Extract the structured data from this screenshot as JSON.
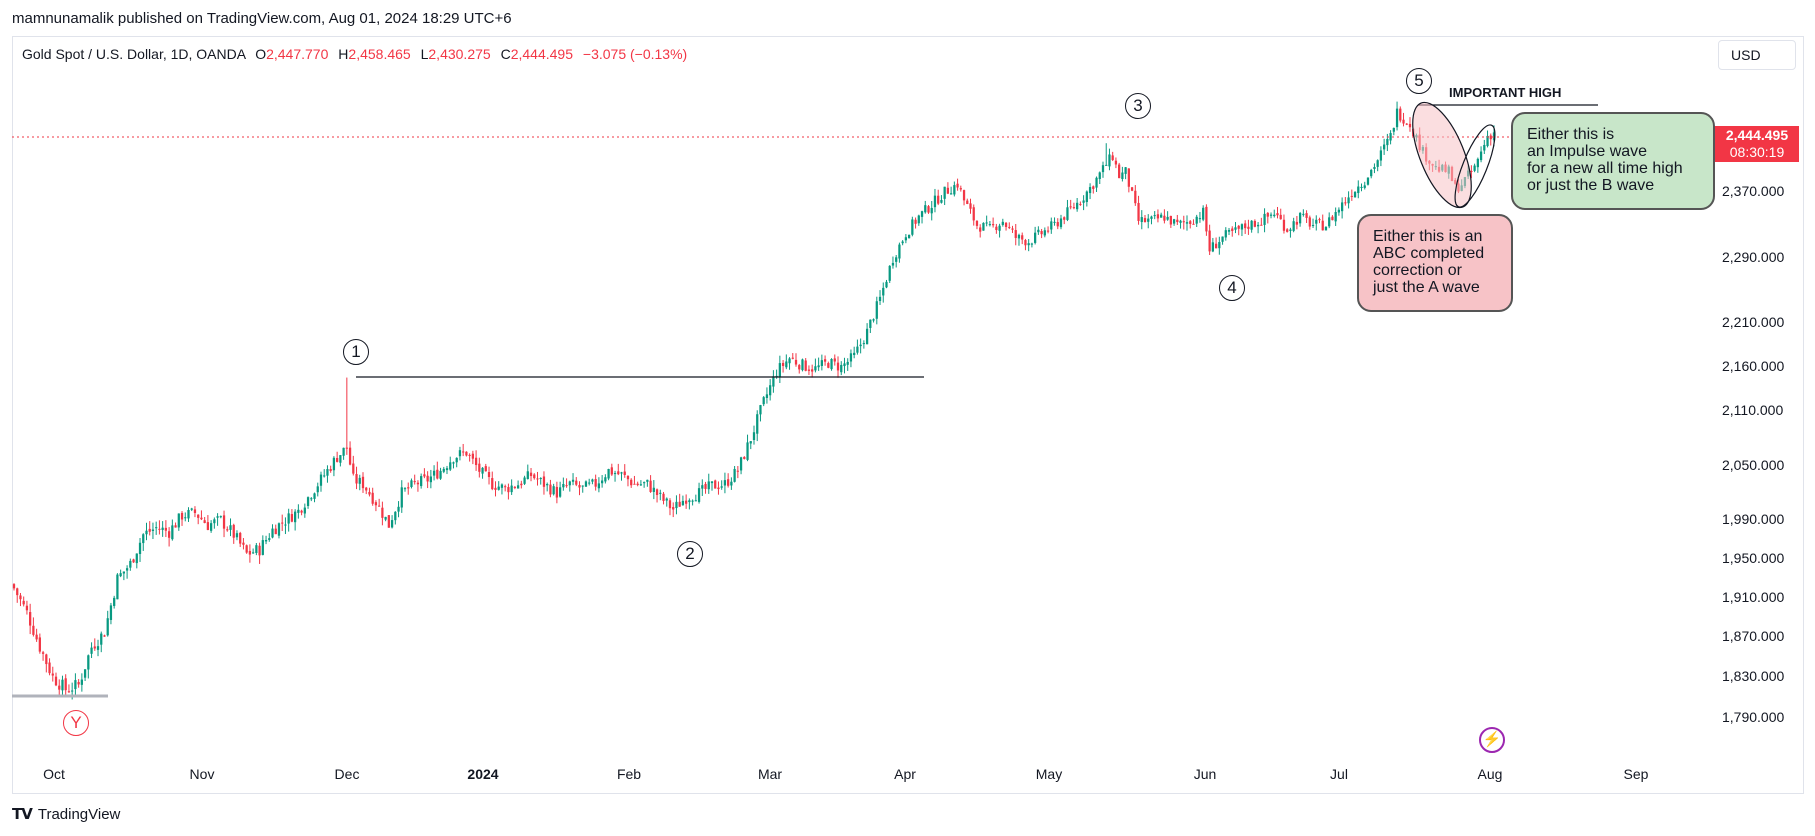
{
  "header": {
    "published": "mamnunamalik published on TradingView.com, Aug 01, 2024 18:29 UTC+6"
  },
  "legend": {
    "symbol": "Gold Spot / U.S. Dollar, 1D, OANDA",
    "o_label": "O",
    "o_value": "2,447.770",
    "h_label": "H",
    "h_value": "2,458.465",
    "l_label": "L",
    "l_value": "2,430.275",
    "c_label": "C",
    "c_value": "2,444.495",
    "change": "−3.075 (−0.13%)"
  },
  "currency_button": "USD",
  "price_badge": {
    "price": "2,444.495",
    "countdown": "08:30:19"
  },
  "footer": {
    "logo_text": "TradingView"
  },
  "annotations": {
    "important_high": "IMPORTANT HIGH",
    "green_note": [
      "Either this is",
      "an Impulse wave",
      "for a new all time high",
      "or just the B wave"
    ],
    "red_note": [
      "Either this is an",
      "ABC completed",
      "correction or",
      "just the A wave"
    ],
    "wave_labels": [
      {
        "name": "wave-1",
        "text": "1"
      },
      {
        "name": "wave-2",
        "text": "2"
      },
      {
        "name": "wave-3",
        "text": "3"
      },
      {
        "name": "wave-4",
        "text": "4"
      },
      {
        "name": "wave-5",
        "text": "5"
      },
      {
        "name": "wave-y",
        "text": "Y"
      }
    ]
  },
  "colors": {
    "up": "#089981",
    "down": "#f23645",
    "level_line": "#131722",
    "ellipse_fill": "#f7c3c7"
  },
  "chart_data": {
    "type": "candlestick",
    "title": "Gold Spot / U.S. Dollar, 1D, OANDA",
    "y_ticks": [
      "1,790.000",
      "1,830.000",
      "1,870.000",
      "1,910.000",
      "1,950.000",
      "1,990.000",
      "2,050.000",
      "2,110.000",
      "2,160.000",
      "2,210.000",
      "2,290.000",
      "2,370.000"
    ],
    "x_ticks": [
      {
        "label": "Oct",
        "bold": false
      },
      {
        "label": "Nov",
        "bold": false
      },
      {
        "label": "Dec",
        "bold": false
      },
      {
        "label": "2024",
        "bold": true
      },
      {
        "label": "Feb",
        "bold": false
      },
      {
        "label": "Mar",
        "bold": false
      },
      {
        "label": "Apr",
        "bold": false
      },
      {
        "label": "May",
        "bold": false
      },
      {
        "label": "Jun",
        "bold": false
      },
      {
        "label": "Jul",
        "bold": false
      },
      {
        "label": "Aug",
        "bold": false
      },
      {
        "label": "Sep",
        "bold": false
      }
    ],
    "path": [
      [
        0,
        1920
      ],
      [
        4,
        1895
      ],
      [
        8,
        1860
      ],
      [
        12,
        1830
      ],
      [
        16,
        1818
      ],
      [
        20,
        1822
      ],
      [
        24,
        1860
      ],
      [
        28,
        1875
      ],
      [
        32,
        1930
      ],
      [
        36,
        1945
      ],
      [
        40,
        1975
      ],
      [
        44,
        1982
      ],
      [
        48,
        1978
      ],
      [
        52,
        1995
      ],
      [
        56,
        1998
      ],
      [
        60,
        1985
      ],
      [
        64,
        1990
      ],
      [
        68,
        1975
      ],
      [
        72,
        1955
      ],
      [
        76,
        1960
      ],
      [
        80,
        1980
      ],
      [
        84,
        1990
      ],
      [
        88,
        2000
      ],
      [
        92,
        2020
      ],
      [
        96,
        2040
      ],
      [
        100,
        2060
      ],
      [
        103,
        2070
      ],
      [
        105,
        2035
      ],
      [
        108,
        2030
      ],
      [
        112,
        2010
      ],
      [
        116,
        1985
      ],
      [
        120,
        2020
      ],
      [
        124,
        2030
      ],
      [
        128,
        2035
      ],
      [
        132,
        2045
      ],
      [
        136,
        2060
      ],
      [
        140,
        2065
      ],
      [
        144,
        2045
      ],
      [
        148,
        2030
      ],
      [
        152,
        2025
      ],
      [
        156,
        2030
      ],
      [
        160,
        2040
      ],
      [
        164,
        2030
      ],
      [
        168,
        2020
      ],
      [
        172,
        2030
      ],
      [
        176,
        2025
      ],
      [
        180,
        2030
      ],
      [
        184,
        2045
      ],
      [
        188,
        2040
      ],
      [
        192,
        2030
      ],
      [
        196,
        2030
      ],
      [
        200,
        2015
      ],
      [
        204,
        2002
      ],
      [
        208,
        2015
      ],
      [
        212,
        2020
      ],
      [
        216,
        2028
      ],
      [
        220,
        2030
      ],
      [
        224,
        2045
      ],
      [
        228,
        2080
      ],
      [
        232,
        2120
      ],
      [
        236,
        2155
      ],
      [
        240,
        2170
      ],
      [
        244,
        2162
      ],
      [
        248,
        2158
      ],
      [
        252,
        2165
      ],
      [
        256,
        2160
      ],
      [
        260,
        2172
      ],
      [
        264,
        2200
      ],
      [
        268,
        2240
      ],
      [
        272,
        2290
      ],
      [
        276,
        2320
      ],
      [
        280,
        2340
      ],
      [
        284,
        2355
      ],
      [
        288,
        2370
      ],
      [
        292,
        2380
      ],
      [
        294,
        2360
      ],
      [
        298,
        2330
      ],
      [
        302,
        2325
      ],
      [
        306,
        2335
      ],
      [
        310,
        2315
      ],
      [
        314,
        2310
      ],
      [
        318,
        2320
      ],
      [
        322,
        2330
      ],
      [
        326,
        2345
      ],
      [
        330,
        2360
      ],
      [
        334,
        2380
      ],
      [
        338,
        2405
      ],
      [
        340,
        2415
      ],
      [
        342,
        2390
      ],
      [
        344,
        2395
      ],
      [
        348,
        2335
      ],
      [
        352,
        2335
      ],
      [
        356,
        2340
      ],
      [
        360,
        2330
      ],
      [
        364,
        2335
      ],
      [
        368,
        2345
      ],
      [
        370,
        2300
      ],
      [
        374,
        2315
      ],
      [
        378,
        2322
      ],
      [
        382,
        2330
      ],
      [
        386,
        2335
      ],
      [
        390,
        2345
      ],
      [
        394,
        2325
      ],
      [
        398,
        2340
      ],
      [
        402,
        2330
      ],
      [
        406,
        2330
      ],
      [
        410,
        2350
      ],
      [
        414,
        2370
      ],
      [
        418,
        2385
      ],
      [
        422,
        2410
      ],
      [
        426,
        2440
      ],
      [
        428,
        2470
      ],
      [
        432,
        2455
      ],
      [
        436,
        2420
      ],
      [
        440,
        2400
      ],
      [
        444,
        2395
      ],
      [
        446,
        2375
      ],
      [
        448,
        2380
      ],
      [
        452,
        2400
      ],
      [
        456,
        2440
      ],
      [
        458,
        2444
      ]
    ],
    "candle_count": 459
  }
}
